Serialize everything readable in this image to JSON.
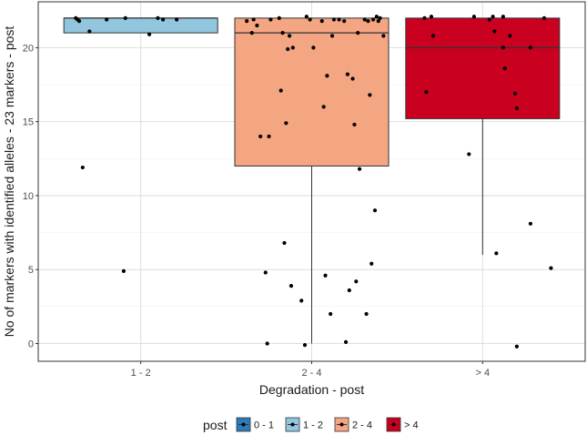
{
  "chart_data": {
    "type": "boxplot-jitter",
    "title": "",
    "xlabel": "Degradation - post",
    "ylabel": "No of markers with identified alleles - 23 markers - post",
    "ylim": [
      -1.2,
      23.1
    ],
    "y_ticks": [
      0,
      5,
      10,
      15,
      20
    ],
    "categories": [
      "1 - 2",
      "2 - 4",
      "> 4"
    ],
    "grid": true,
    "legend": {
      "position": "bottom",
      "title": "post",
      "items": [
        {
          "label": "0 - 1",
          "color": "#2c7bb6"
        },
        {
          "label": "1 - 2",
          "color": "#92c5de"
        },
        {
          "label": "2 - 4",
          "color": "#f4a582"
        },
        {
          "label": "> 4",
          "color": "#ca0020"
        }
      ]
    },
    "boxes": [
      {
        "category": "1 - 2",
        "color": "#92c5de",
        "min": 21,
        "q1": 21,
        "median": 22,
        "q3": 22,
        "max": 22
      },
      {
        "category": "2 - 4",
        "color": "#f4a582",
        "min": 0,
        "q1": 12,
        "median": 21,
        "q3": 22,
        "max": 22
      },
      {
        "category": "> 4",
        "color": "#ca0020",
        "min": 6,
        "q1": 15.2,
        "median": 20,
        "q3": 22,
        "max": 22
      }
    ],
    "points": [
      {
        "category": "1 - 2",
        "x": 0.62,
        "y": 22.0
      },
      {
        "category": "1 - 2",
        "x": 0.63,
        "y": 21.9
      },
      {
        "category": "1 - 2",
        "x": 0.64,
        "y": 21.8
      },
      {
        "category": "1 - 2",
        "x": 0.66,
        "y": 11.9
      },
      {
        "category": "1 - 2",
        "x": 0.7,
        "y": 21.1
      },
      {
        "category": "1 - 2",
        "x": 0.8,
        "y": 21.9
      },
      {
        "category": "1 - 2",
        "x": 0.9,
        "y": 4.9
      },
      {
        "category": "1 - 2",
        "x": 0.91,
        "y": 22.0
      },
      {
        "category": "1 - 2",
        "x": 1.05,
        "y": 20.9
      },
      {
        "category": "1 - 2",
        "x": 1.1,
        "y": 22.0
      },
      {
        "category": "1 - 2",
        "x": 1.13,
        "y": 21.9
      },
      {
        "category": "1 - 2",
        "x": 1.21,
        "y": 21.9
      },
      {
        "category": "2 - 4",
        "x": 1.62,
        "y": 21.8
      },
      {
        "category": "2 - 4",
        "x": 1.65,
        "y": 21.0
      },
      {
        "category": "2 - 4",
        "x": 1.66,
        "y": 21.9
      },
      {
        "category": "2 - 4",
        "x": 1.68,
        "y": 21.5
      },
      {
        "category": "2 - 4",
        "x": 1.7,
        "y": 14.0
      },
      {
        "category": "2 - 4",
        "x": 1.73,
        "y": 4.8
      },
      {
        "category": "2 - 4",
        "x": 1.74,
        "y": 0.0
      },
      {
        "category": "2 - 4",
        "x": 1.75,
        "y": 14.0
      },
      {
        "category": "2 - 4",
        "x": 1.76,
        "y": 21.9
      },
      {
        "category": "2 - 4",
        "x": 1.81,
        "y": 22.0
      },
      {
        "category": "2 - 4",
        "x": 1.82,
        "y": 17.1
      },
      {
        "category": "2 - 4",
        "x": 1.83,
        "y": 21.0
      },
      {
        "category": "2 - 4",
        "x": 1.84,
        "y": 6.8
      },
      {
        "category": "2 - 4",
        "x": 1.85,
        "y": 14.9
      },
      {
        "category": "2 - 4",
        "x": 1.86,
        "y": 19.9
      },
      {
        "category": "2 - 4",
        "x": 1.87,
        "y": 20.8
      },
      {
        "category": "2 - 4",
        "x": 1.88,
        "y": 3.9
      },
      {
        "category": "2 - 4",
        "x": 1.89,
        "y": 20.0
      },
      {
        "category": "2 - 4",
        "x": 1.94,
        "y": 2.9
      },
      {
        "category": "2 - 4",
        "x": 1.96,
        "y": -0.1
      },
      {
        "category": "2 - 4",
        "x": 1.97,
        "y": 22.1
      },
      {
        "category": "2 - 4",
        "x": 1.99,
        "y": 21.9
      },
      {
        "category": "2 - 4",
        "x": 2.01,
        "y": 20.0
      },
      {
        "category": "2 - 4",
        "x": 2.06,
        "y": 21.8
      },
      {
        "category": "2 - 4",
        "x": 2.07,
        "y": 16.0
      },
      {
        "category": "2 - 4",
        "x": 2.08,
        "y": 4.6
      },
      {
        "category": "2 - 4",
        "x": 2.09,
        "y": 18.1
      },
      {
        "category": "2 - 4",
        "x": 2.11,
        "y": 2.0
      },
      {
        "category": "2 - 4",
        "x": 2.12,
        "y": 20.8
      },
      {
        "category": "2 - 4",
        "x": 2.13,
        "y": 21.9
      },
      {
        "category": "2 - 4",
        "x": 2.16,
        "y": 21.9
      },
      {
        "category": "2 - 4",
        "x": 2.19,
        "y": 21.8
      },
      {
        "category": "2 - 4",
        "x": 2.2,
        "y": 0.1
      },
      {
        "category": "2 - 4",
        "x": 2.21,
        "y": 18.2
      },
      {
        "category": "2 - 4",
        "x": 2.22,
        "y": 3.6
      },
      {
        "category": "2 - 4",
        "x": 2.24,
        "y": 17.9
      },
      {
        "category": "2 - 4",
        "x": 2.25,
        "y": 14.8
      },
      {
        "category": "2 - 4",
        "x": 2.26,
        "y": 4.2
      },
      {
        "category": "2 - 4",
        "x": 2.27,
        "y": 21.0
      },
      {
        "category": "2 - 4",
        "x": 2.28,
        "y": 11.8
      },
      {
        "category": "2 - 4",
        "x": 2.31,
        "y": 21.9
      },
      {
        "category": "2 - 4",
        "x": 2.32,
        "y": 2.0
      },
      {
        "category": "2 - 4",
        "x": 2.33,
        "y": 21.8
      },
      {
        "category": "2 - 4",
        "x": 2.34,
        "y": 16.8
      },
      {
        "category": "2 - 4",
        "x": 2.35,
        "y": 5.4
      },
      {
        "category": "2 - 4",
        "x": 2.36,
        "y": 21.9
      },
      {
        "category": "2 - 4",
        "x": 2.37,
        "y": 9.0
      },
      {
        "category": "2 - 4",
        "x": 2.38,
        "y": 22.1
      },
      {
        "category": "2 - 4",
        "x": 2.39,
        "y": 21.8
      },
      {
        "category": "2 - 4",
        "x": 2.4,
        "y": 22.0
      },
      {
        "category": "2 - 4",
        "x": 2.42,
        "y": 20.8
      },
      {
        "category": "> 4",
        "x": 2.66,
        "y": 22.0
      },
      {
        "category": "> 4",
        "x": 2.67,
        "y": 17.0
      },
      {
        "category": "> 4",
        "x": 2.7,
        "y": 22.1
      },
      {
        "category": "> 4",
        "x": 2.71,
        "y": 20.8
      },
      {
        "category": "> 4",
        "x": 2.92,
        "y": 12.8
      },
      {
        "category": "> 4",
        "x": 2.95,
        "y": 22.1
      },
      {
        "category": "> 4",
        "x": 3.04,
        "y": 21.9
      },
      {
        "category": "> 4",
        "x": 3.06,
        "y": 22.1
      },
      {
        "category": "> 4",
        "x": 3.07,
        "y": 21.1
      },
      {
        "category": "> 4",
        "x": 3.08,
        "y": 6.1
      },
      {
        "category": "> 4",
        "x": 3.12,
        "y": 20.0
      },
      {
        "category": "> 4",
        "x": 3.12,
        "y": 22.1
      },
      {
        "category": "> 4",
        "x": 3.13,
        "y": 18.6
      },
      {
        "category": "> 4",
        "x": 3.16,
        "y": 20.8
      },
      {
        "category": "> 4",
        "x": 3.19,
        "y": 16.9
      },
      {
        "category": "> 4",
        "x": 3.2,
        "y": 15.9
      },
      {
        "category": "> 4",
        "x": 3.2,
        "y": -0.2
      },
      {
        "category": "> 4",
        "x": 3.28,
        "y": 8.1
      },
      {
        "category": "> 4",
        "x": 3.28,
        "y": 20.0
      },
      {
        "category": "> 4",
        "x": 3.36,
        "y": 22.0
      },
      {
        "category": "> 4",
        "x": 3.4,
        "y": 5.1
      }
    ]
  }
}
